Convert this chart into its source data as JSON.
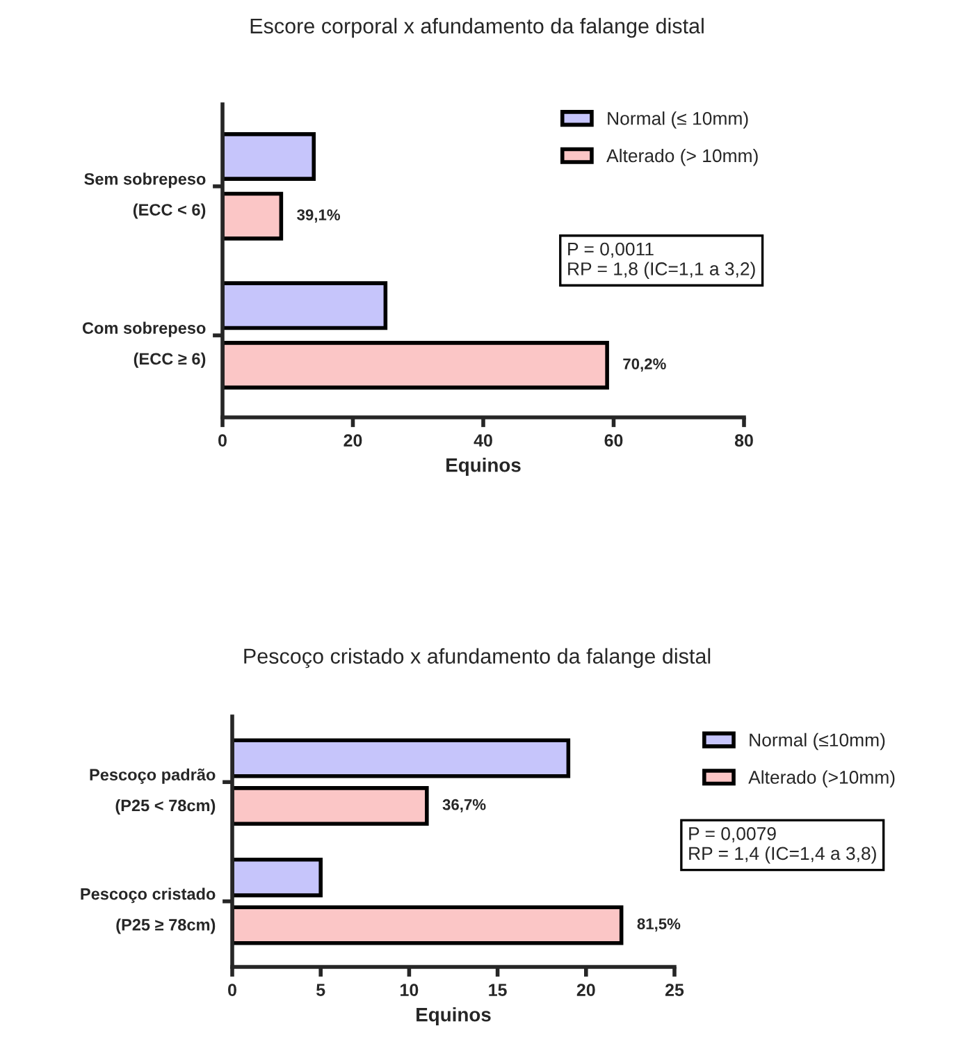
{
  "chart_data": [
    {
      "type": "bar",
      "orientation": "horizontal",
      "title": "Escore corporal x afundamento da falange distal",
      "xlabel": "Equinos",
      "categories": [
        "Sem sobrepeso\n(ECC < 6)",
        "Com sobrepeso\n(ECC ≥ 6)"
      ],
      "series": [
        {
          "name": "Normal (≤ 10mm)",
          "color": "#c6c5fb",
          "values": [
            14,
            25
          ]
        },
        {
          "name": "Alterado (> 10mm)",
          "color": "#fbc6c6",
          "values": [
            9,
            59
          ]
        }
      ],
      "xlim": [
        0,
        80
      ],
      "xticks": [
        0,
        20,
        40,
        60,
        80
      ],
      "grid": false,
      "legend": "top right",
      "annotations": [
        {
          "text": "39,1%",
          "x": 9,
          "y": "Sem sobrepeso\n(ECC < 6)"
        },
        {
          "text": "70,2%",
          "x": 59,
          "y": "Com sobrepeso\n(ECC ≥ 6)"
        },
        "P = 0,0011\nRP = 1,8 (IC=1,1 a 3,2)"
      ]
    },
    {
      "type": "bar",
      "orientation": "horizontal",
      "title": "Pescoço cristado x afundamento da falange distal",
      "xlabel": "Equinos",
      "categories": [
        "Pescoço padrão\n(P25 < 78cm)",
        "Pescoço cristado\n(P25 ≥ 78cm)"
      ],
      "series": [
        {
          "name": "Normal (≤10mm)",
          "color": "#c6c5fb",
          "values": [
            19,
            5
          ]
        },
        {
          "name": "Alterado (>10mm)",
          "color": "#fbc6c6",
          "values": [
            11,
            22
          ]
        }
      ],
      "xlim": [
        0,
        25
      ],
      "xticks": [
        0,
        5,
        10,
        15,
        20,
        25
      ],
      "grid": false,
      "legend": "top right",
      "annotations": [
        {
          "text": "36,7%",
          "x": 11,
          "y": "Pescoço padrão\n(P25 < 78cm)"
        },
        {
          "text": "81,5%",
          "x": 22,
          "y": "Pescoço cristado\n(P25 ≥ 78cm)"
        },
        "P = 0,0079\nRP = 1,4 (IC=1,4 a 3,8)"
      ]
    }
  ]
}
